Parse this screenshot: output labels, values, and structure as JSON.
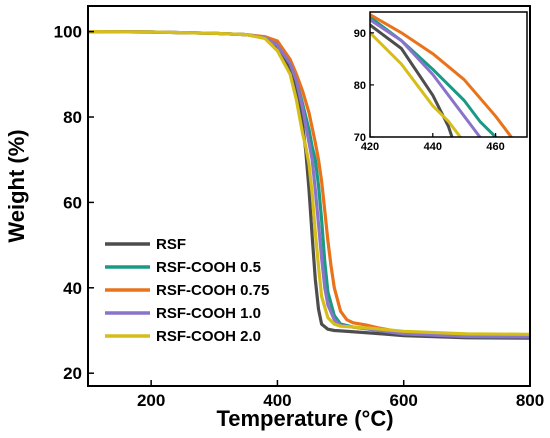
{
  "chart_data": [
    {
      "type": "line",
      "xlabel": "Temperature (°C)",
      "ylabel": "Weight (%)",
      "xlim": [
        100,
        800
      ],
      "ylim": [
        17,
        106
      ],
      "xticks": [
        200,
        400,
        600,
        800
      ],
      "yticks": [
        20,
        40,
        60,
        80,
        100
      ],
      "legend": "bottom-left",
      "series": [
        {
          "name": "RSF",
          "color": "#4d4d4d",
          "x": [
            100,
            200,
            300,
            350,
            380,
            400,
            420,
            430,
            440,
            445,
            450,
            455,
            460,
            465,
            470,
            480,
            490,
            500,
            550,
            600,
            700,
            800
          ],
          "y": [
            100,
            99.9,
            99.6,
            99.3,
            98.5,
            96,
            91.5,
            87,
            78,
            72,
            63,
            52,
            42,
            35,
            31.5,
            30.3,
            30,
            29.9,
            29.4,
            28.8,
            28.3,
            28.2
          ]
        },
        {
          "name": "RSF-COOH 0.5",
          "color": "#1a9a85",
          "x": [
            100,
            200,
            300,
            350,
            380,
            400,
            420,
            430,
            440,
            450,
            455,
            460,
            465,
            470,
            475,
            480,
            490,
            500,
            520,
            550,
            600,
            700,
            800
          ],
          "y": [
            100,
            99.9,
            99.6,
            99.3,
            98.7,
            97.5,
            93,
            88.5,
            83,
            77,
            73,
            70,
            64,
            56,
            46,
            39,
            33.5,
            31.5,
            30.8,
            30.2,
            29.3,
            28.6,
            28.5
          ]
        },
        {
          "name": "RSF-COOH 0.75",
          "color": "#e8731b",
          "x": [
            100,
            200,
            300,
            350,
            380,
            400,
            420,
            430,
            440,
            450,
            460,
            465,
            470,
            475,
            480,
            485,
            490,
            500,
            510,
            520,
            540,
            560,
            600,
            700,
            800
          ],
          "y": [
            100,
            99.9,
            99.6,
            99.3,
            98.8,
            97.8,
            93.5,
            90,
            86,
            81,
            74,
            70,
            65,
            58,
            51,
            45,
            40,
            34.5,
            32.5,
            31.8,
            31.3,
            30.6,
            29.5,
            28.9,
            28.8
          ]
        },
        {
          "name": "RSF-COOH 1.0",
          "color": "#8a74c9",
          "x": [
            100,
            200,
            300,
            350,
            380,
            400,
            420,
            430,
            440,
            450,
            455,
            460,
            465,
            470,
            475,
            480,
            490,
            500,
            550,
            600,
            700,
            800
          ],
          "y": [
            100,
            99.9,
            99.6,
            99.3,
            98.6,
            96.8,
            92.5,
            88.5,
            82,
            74,
            70,
            63,
            55,
            47,
            40,
            36,
            32.5,
            31.2,
            30.2,
            29.2,
            28.6,
            28.5
          ]
        },
        {
          "name": "RSF-COOH 2.0",
          "color": "#d6be1a",
          "x": [
            100,
            200,
            300,
            350,
            380,
            400,
            420,
            430,
            440,
            445,
            450,
            455,
            460,
            465,
            470,
            480,
            490,
            500,
            550,
            600,
            700,
            800
          ],
          "y": [
            100,
            99.9,
            99.6,
            99.3,
            98.4,
            95.5,
            90,
            84,
            76,
            73,
            69,
            62,
            53,
            45,
            38,
            33,
            31.5,
            31,
            30.5,
            29.8,
            29.2,
            29.1
          ]
        }
      ]
    },
    {
      "type": "line",
      "xlim": [
        420,
        470
      ],
      "ylim": [
        70,
        94
      ],
      "xticks": [
        420,
        440,
        460
      ],
      "yticks": [
        70,
        80,
        90
      ]
    }
  ]
}
